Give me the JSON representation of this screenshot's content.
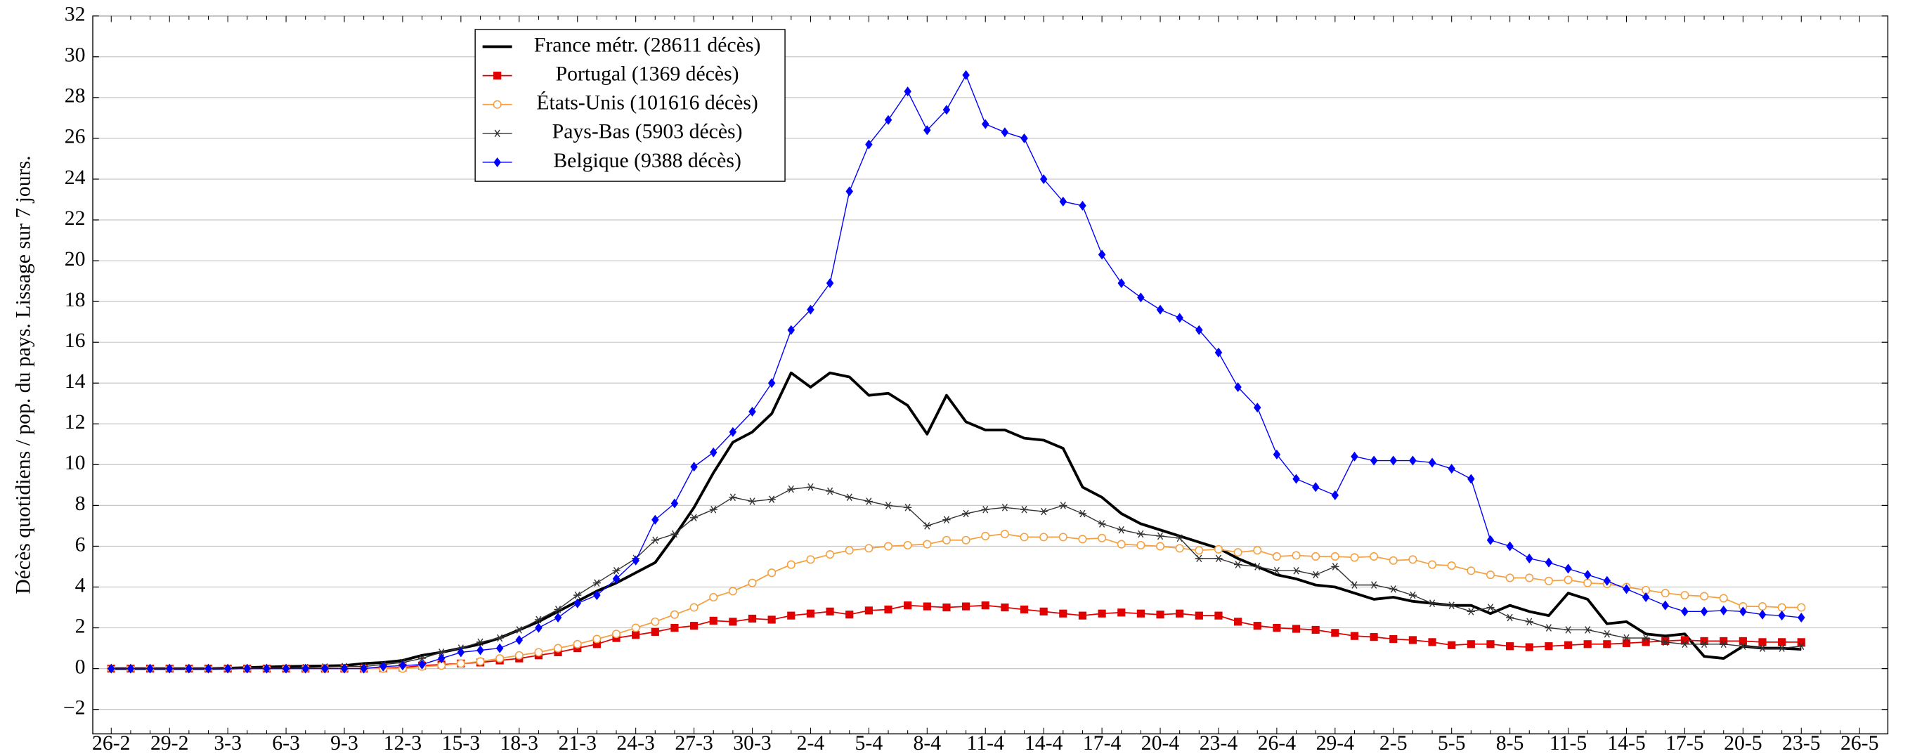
{
  "chart_data": {
    "type": "line",
    "y_label": "Décès quotidiens / pop. du pays. Lissage sur 7 jours.",
    "categories": [
      "26-2",
      null,
      null,
      "29-2",
      null,
      null,
      "3-3",
      null,
      null,
      "6-3",
      null,
      null,
      "9-3",
      null,
      null,
      "12-3",
      null,
      null,
      "15-3",
      null,
      null,
      "18-3",
      null,
      null,
      "21-3",
      null,
      null,
      "24-3",
      null,
      null,
      "27-3",
      null,
      null,
      "30-3",
      null,
      null,
      "2-4",
      null,
      null,
      "5-4",
      null,
      null,
      "8-4",
      null,
      null,
      "11-4",
      null,
      null,
      "14-4",
      null,
      null,
      "17-4",
      null,
      null,
      "20-4",
      null,
      null,
      "23-4",
      null,
      null,
      "26-4",
      null,
      null,
      "29-4",
      null,
      null,
      "2-5",
      null,
      null,
      "5-5",
      null,
      null,
      "8-5",
      null,
      null,
      "11-5",
      null,
      null,
      "14-5",
      null,
      null,
      "17-5",
      null,
      null,
      "20-5",
      null,
      null,
      "23-5",
      null,
      null,
      "26-5"
    ],
    "ylim": [
      -3.2,
      32
    ],
    "yticks": [
      {
        "value": -2,
        "label": "−2"
      },
      0,
      2,
      4,
      6,
      8,
      10,
      12,
      14,
      16,
      18,
      20,
      22,
      24,
      26,
      28,
      30,
      32
    ],
    "grid": true,
    "legend": "upper-left",
    "series": [
      {
        "name": "France métr. (28611 décès)",
        "color": "#000000",
        "marker": "none",
        "line_width": 2.2,
        "values": [
          0,
          0,
          0,
          0,
          0,
          0,
          0.02,
          0.05,
          0.08,
          0.1,
          0.12,
          0.13,
          0.15,
          0.25,
          0.3,
          0.4,
          0.65,
          0.8,
          1.0,
          1.2,
          1.5,
          1.9,
          2.3,
          2.8,
          3.3,
          3.8,
          4.2,
          4.7,
          5.2,
          6.5,
          7.9,
          9.6,
          11.1,
          11.6,
          12.5,
          14.5,
          13.8,
          14.5,
          14.3,
          13.4,
          13.5,
          12.9,
          11.5,
          13.4,
          12.1,
          11.7,
          11.7,
          11.3,
          11.2,
          10.8,
          8.9,
          8.4,
          7.6,
          7.1,
          6.8,
          6.5,
          6.2,
          5.9,
          5.4,
          5.0,
          4.6,
          4.4,
          4.1,
          4.0,
          3.7,
          3.4,
          3.5,
          3.3,
          3.2,
          3.1,
          3.1,
          2.7,
          3.1,
          2.8,
          2.6,
          3.7,
          3.4,
          2.2,
          2.3,
          1.7,
          1.6,
          1.7,
          0.6,
          0.5,
          1.1,
          1.0,
          1.0,
          0.95,
          null,
          null,
          null
        ]
      },
      {
        "name": "Portugal (1369 décès)",
        "color": "#e00000",
        "marker": "square",
        "line_width": 1,
        "values": [
          0,
          0,
          0,
          0,
          0,
          0,
          0,
          0,
          0,
          0,
          0,
          0,
          0,
          0,
          0.02,
          0.05,
          0.15,
          0.2,
          0.25,
          0.3,
          0.4,
          0.5,
          0.65,
          0.8,
          1.0,
          1.2,
          1.5,
          1.65,
          1.8,
          2.0,
          2.1,
          2.35,
          2.3,
          2.45,
          2.4,
          2.6,
          2.7,
          2.8,
          2.65,
          2.85,
          2.9,
          3.1,
          3.05,
          3.0,
          3.05,
          3.1,
          3.0,
          2.9,
          2.8,
          2.7,
          2.6,
          2.7,
          2.75,
          2.7,
          2.65,
          2.7,
          2.6,
          2.6,
          2.3,
          2.1,
          2.0,
          1.95,
          1.9,
          1.75,
          1.6,
          1.55,
          1.45,
          1.4,
          1.3,
          1.15,
          1.2,
          1.2,
          1.1,
          1.05,
          1.1,
          1.15,
          1.2,
          1.2,
          1.25,
          1.3,
          1.35,
          1.4,
          1.35,
          1.35,
          1.35,
          1.3,
          1.3,
          1.3,
          null,
          null,
          null
        ]
      },
      {
        "name": "États-Unis (101616 décès)",
        "color": "#f5a040",
        "marker": "circle",
        "line_width": 1,
        "values": [
          0,
          0,
          0,
          0,
          0,
          0,
          0,
          0,
          0,
          0,
          0,
          0,
          0,
          0,
          0,
          0,
          0.1,
          0.15,
          0.25,
          0.35,
          0.5,
          0.65,
          0.8,
          1.0,
          1.2,
          1.45,
          1.7,
          2.0,
          2.3,
          2.65,
          3.0,
          3.5,
          3.8,
          4.2,
          4.7,
          5.1,
          5.35,
          5.6,
          5.8,
          5.9,
          6.0,
          6.05,
          6.1,
          6.3,
          6.3,
          6.5,
          6.6,
          6.45,
          6.45,
          6.45,
          6.35,
          6.4,
          6.1,
          6.05,
          6.0,
          5.9,
          5.8,
          5.85,
          5.7,
          5.8,
          5.5,
          5.55,
          5.5,
          5.5,
          5.45,
          5.5,
          5.3,
          5.35,
          5.1,
          5.05,
          4.8,
          4.6,
          4.45,
          4.45,
          4.3,
          4.35,
          4.2,
          4.15,
          4.0,
          3.85,
          3.7,
          3.6,
          3.55,
          3.45,
          3.05,
          3.05,
          3.0,
          3.0,
          null,
          null,
          null
        ]
      },
      {
        "name": "Pays-Bas (5903 décès)",
        "color": "#333333",
        "marker": "star",
        "line_width": 0.8,
        "values": [
          0,
          0,
          0,
          0,
          0,
          0,
          0,
          0,
          0,
          0,
          0.05,
          0.08,
          0.1,
          0.1,
          0.2,
          0.3,
          0.5,
          0.8,
          1.0,
          1.3,
          1.5,
          1.9,
          2.4,
          2.9,
          3.6,
          4.2,
          4.8,
          5.4,
          6.3,
          6.6,
          7.4,
          7.8,
          8.4,
          8.2,
          8.3,
          8.8,
          8.9,
          8.7,
          8.4,
          8.2,
          8.0,
          7.9,
          7.0,
          7.3,
          7.6,
          7.8,
          7.9,
          7.8,
          7.7,
          8.0,
          7.6,
          7.1,
          6.8,
          6.6,
          6.5,
          6.4,
          5.4,
          5.4,
          5.1,
          5.0,
          4.8,
          4.8,
          4.6,
          5.0,
          4.1,
          4.1,
          3.9,
          3.6,
          3.2,
          3.1,
          2.8,
          3.0,
          2.5,
          2.3,
          2.0,
          1.9,
          1.9,
          1.7,
          1.5,
          1.5,
          1.3,
          1.2,
          1.2,
          1.2,
          1.1,
          1.0,
          1.0,
          1.1,
          null,
          null,
          null
        ]
      },
      {
        "name": "Belgique (9388 décès)",
        "color": "#0000ff",
        "marker": "diamond",
        "line_width": 0.8,
        "values": [
          0,
          0,
          0,
          0,
          0,
          0,
          0,
          0,
          0,
          0,
          0,
          0,
          0,
          0,
          0.1,
          0.15,
          0.2,
          0.5,
          0.8,
          0.9,
          1.0,
          1.4,
          2.0,
          2.5,
          3.2,
          3.6,
          4.4,
          5.3,
          7.3,
          8.1,
          9.9,
          10.6,
          11.6,
          12.6,
          14.0,
          16.6,
          17.6,
          18.9,
          23.4,
          25.7,
          26.9,
          28.3,
          26.4,
          27.4,
          29.1,
          26.7,
          26.3,
          26.0,
          24.0,
          22.9,
          22.7,
          20.3,
          18.9,
          18.2,
          17.6,
          17.2,
          16.6,
          15.5,
          13.8,
          12.8,
          10.5,
          9.3,
          8.9,
          8.5,
          10.4,
          10.2,
          10.2,
          10.2,
          10.1,
          9.8,
          9.3,
          6.3,
          6.0,
          5.4,
          5.2,
          4.9,
          4.6,
          4.3,
          3.9,
          3.5,
          3.1,
          2.8,
          2.8,
          2.85,
          2.8,
          2.65,
          2.6,
          2.5,
          null,
          null,
          null
        ]
      }
    ]
  }
}
